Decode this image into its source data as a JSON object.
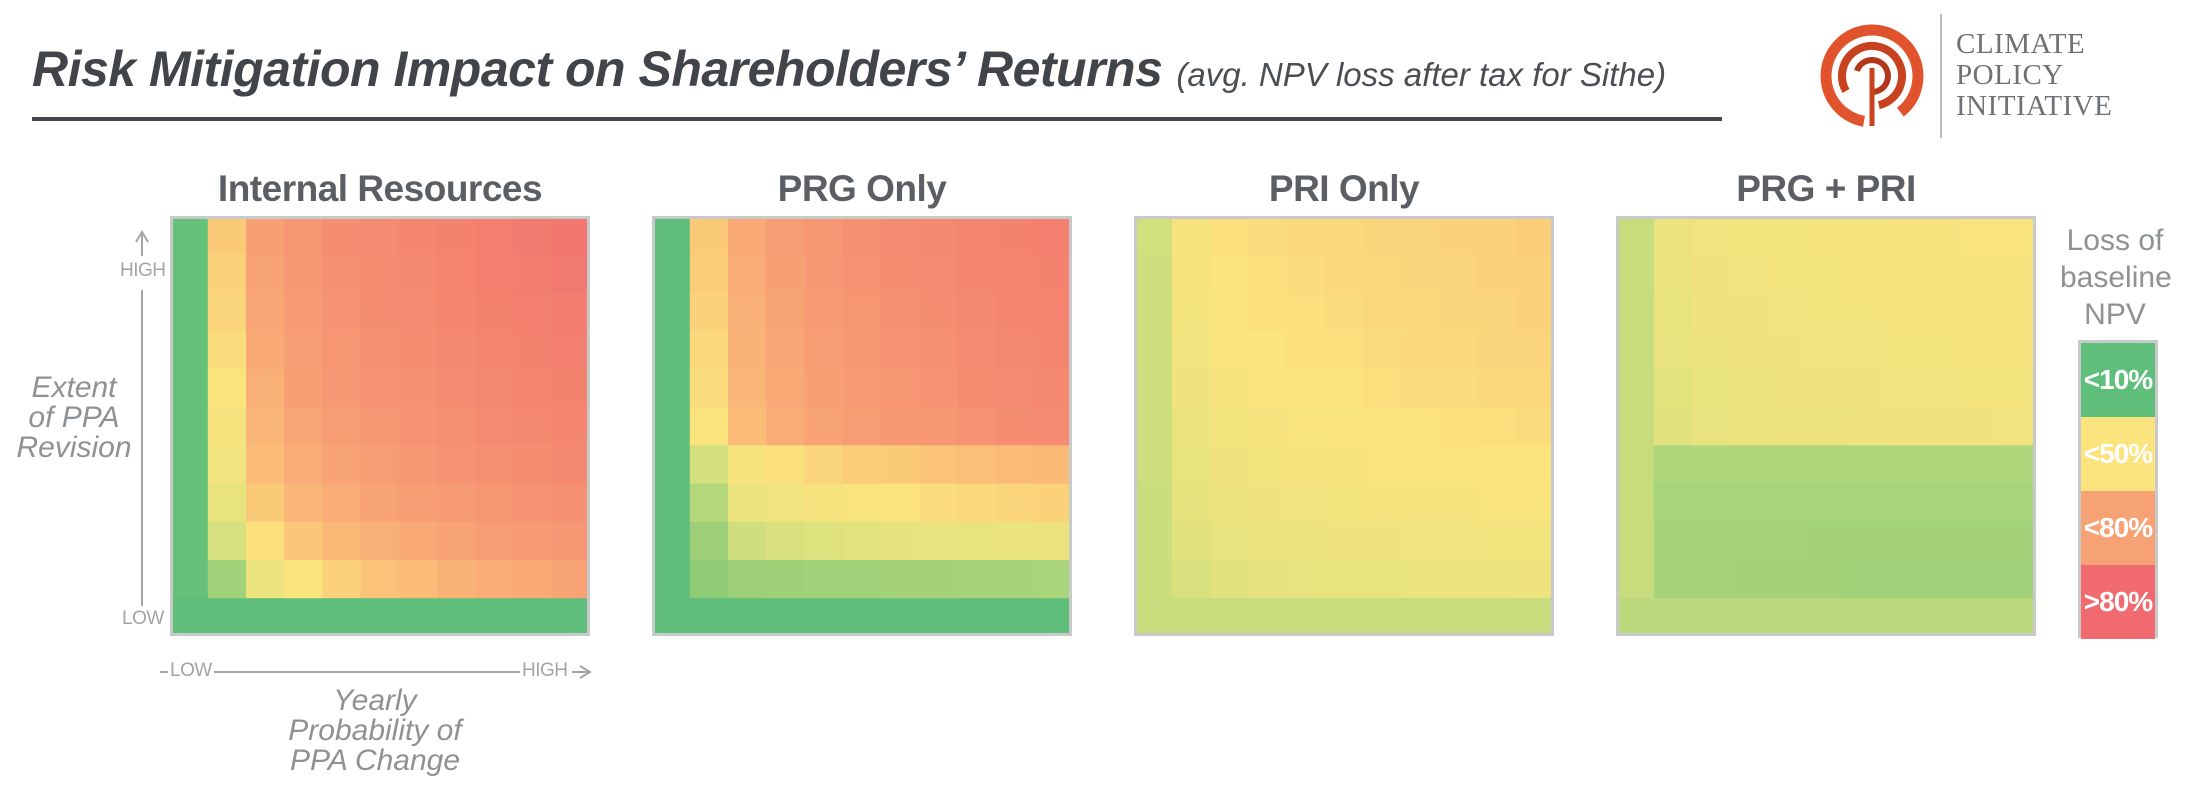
{
  "header": {
    "title": "Risk Mitigation Impact on Shareholders’ Returns",
    "subtitle": "(avg. NPV loss after tax for Sithe)"
  },
  "logo": {
    "lines": [
      "CLIMATE",
      "POLICY",
      "INITIATIVE"
    ],
    "mark_color": "#e0532c"
  },
  "axes": {
    "y_title": [
      "Extent",
      "of PPA",
      "Revision"
    ],
    "y_high": "HIGH",
    "y_low": "LOW",
    "x_title": [
      "Yearly",
      "Probability of",
      "PPA Change"
    ],
    "x_low": "LOW",
    "x_high": "HIGH"
  },
  "legend": {
    "title": [
      "Loss of",
      "baseline",
      "NPV"
    ],
    "items": [
      {
        "label": "<10%",
        "color": "#5fbe7a"
      },
      {
        "label": "<50%",
        "color": "#fbe37d"
      },
      {
        "label": "<80%",
        "color": "#f6a274"
      },
      {
        "label": ">80%",
        "color": "#f06a6f"
      }
    ]
  },
  "chart_data": {
    "type": "heatmap",
    "title": "Risk Mitigation Impact on Shareholders’ Returns",
    "xlabel": "Yearly Probability of PPA Change",
    "ylabel": "Extent of PPA Revision",
    "x_scale": "LOW to HIGH (11 steps)",
    "y_scale": "LOW to HIGH (11 steps)",
    "row_order": "high-to-low",
    "value_unit": "fraction of baseline NPV lost",
    "panels": [
      {
        "name": "Internal Resources",
        "z": [
          [
            0.02,
            0.62,
            0.75,
            0.79,
            0.82,
            0.83,
            0.85,
            0.87,
            0.89,
            0.91,
            0.93
          ],
          [
            0.02,
            0.6,
            0.74,
            0.78,
            0.81,
            0.82,
            0.84,
            0.86,
            0.88,
            0.9,
            0.92
          ],
          [
            0.02,
            0.59,
            0.73,
            0.77,
            0.8,
            0.82,
            0.83,
            0.85,
            0.87,
            0.88,
            0.9
          ],
          [
            0.02,
            0.57,
            0.72,
            0.76,
            0.79,
            0.81,
            0.82,
            0.84,
            0.85,
            0.87,
            0.89
          ],
          [
            0.02,
            0.55,
            0.7,
            0.75,
            0.78,
            0.8,
            0.81,
            0.83,
            0.84,
            0.86,
            0.87
          ],
          [
            0.02,
            0.52,
            0.68,
            0.73,
            0.76,
            0.78,
            0.8,
            0.81,
            0.83,
            0.84,
            0.85
          ],
          [
            0.02,
            0.49,
            0.66,
            0.71,
            0.74,
            0.76,
            0.78,
            0.8,
            0.81,
            0.82,
            0.84
          ],
          [
            0.02,
            0.44,
            0.62,
            0.68,
            0.71,
            0.74,
            0.76,
            0.77,
            0.79,
            0.8,
            0.81
          ],
          [
            0.02,
            0.36,
            0.56,
            0.63,
            0.67,
            0.7,
            0.72,
            0.74,
            0.76,
            0.77,
            0.78
          ],
          [
            0.02,
            0.22,
            0.46,
            0.55,
            0.6,
            0.64,
            0.66,
            0.69,
            0.71,
            0.72,
            0.74
          ],
          [
            0.0,
            0.0,
            0.0,
            0.0,
            0.0,
            0.0,
            0.0,
            0.0,
            0.0,
            0.0,
            0.0
          ]
        ]
      },
      {
        "name": "PRG Only",
        "z": [
          [
            0.0,
            0.62,
            0.72,
            0.76,
            0.79,
            0.81,
            0.83,
            0.84,
            0.86,
            0.87,
            0.88
          ],
          [
            0.0,
            0.61,
            0.71,
            0.75,
            0.78,
            0.8,
            0.82,
            0.83,
            0.85,
            0.86,
            0.87
          ],
          [
            0.0,
            0.6,
            0.7,
            0.74,
            0.77,
            0.79,
            0.81,
            0.82,
            0.84,
            0.85,
            0.86
          ],
          [
            0.0,
            0.58,
            0.69,
            0.73,
            0.76,
            0.78,
            0.8,
            0.81,
            0.83,
            0.84,
            0.85
          ],
          [
            0.0,
            0.57,
            0.68,
            0.72,
            0.75,
            0.77,
            0.79,
            0.8,
            0.82,
            0.83,
            0.84
          ],
          [
            0.0,
            0.55,
            0.66,
            0.71,
            0.74,
            0.76,
            0.78,
            0.79,
            0.8,
            0.82,
            0.83
          ],
          [
            0.0,
            0.35,
            0.52,
            0.56,
            0.59,
            0.61,
            0.62,
            0.64,
            0.65,
            0.66,
            0.67
          ],
          [
            0.0,
            0.27,
            0.45,
            0.49,
            0.52,
            0.54,
            0.55,
            0.57,
            0.58,
            0.59,
            0.6
          ],
          [
            0.0,
            0.2,
            0.33,
            0.37,
            0.39,
            0.41,
            0.42,
            0.43,
            0.44,
            0.45,
            0.46
          ],
          [
            0.0,
            0.15,
            0.2,
            0.21,
            0.22,
            0.22,
            0.23,
            0.23,
            0.24,
            0.24,
            0.25
          ],
          [
            0.0,
            0.0,
            0.0,
            0.0,
            0.0,
            0.0,
            0.0,
            0.0,
            0.0,
            0.0,
            0.0
          ]
        ]
      },
      {
        "name": "PRI Only",
        "z": [
          [
            0.34,
            0.52,
            0.56,
            0.57,
            0.58,
            0.58,
            0.59,
            0.59,
            0.6,
            0.6,
            0.61
          ],
          [
            0.33,
            0.51,
            0.55,
            0.56,
            0.57,
            0.58,
            0.58,
            0.59,
            0.59,
            0.6,
            0.6
          ],
          [
            0.33,
            0.5,
            0.54,
            0.56,
            0.56,
            0.57,
            0.58,
            0.58,
            0.59,
            0.59,
            0.6
          ],
          [
            0.33,
            0.49,
            0.53,
            0.55,
            0.56,
            0.56,
            0.57,
            0.58,
            0.58,
            0.59,
            0.59
          ],
          [
            0.32,
            0.47,
            0.52,
            0.53,
            0.55,
            0.55,
            0.56,
            0.57,
            0.57,
            0.58,
            0.58
          ],
          [
            0.32,
            0.45,
            0.5,
            0.52,
            0.53,
            0.54,
            0.55,
            0.55,
            0.56,
            0.56,
            0.57
          ],
          [
            0.32,
            0.44,
            0.48,
            0.5,
            0.51,
            0.52,
            0.53,
            0.54,
            0.54,
            0.55,
            0.55
          ],
          [
            0.31,
            0.42,
            0.46,
            0.48,
            0.49,
            0.5,
            0.51,
            0.52,
            0.52,
            0.53,
            0.53
          ],
          [
            0.31,
            0.4,
            0.43,
            0.45,
            0.46,
            0.47,
            0.48,
            0.49,
            0.49,
            0.5,
            0.5
          ],
          [
            0.31,
            0.37,
            0.4,
            0.42,
            0.43,
            0.44,
            0.44,
            0.45,
            0.46,
            0.46,
            0.47
          ],
          [
            0.3,
            0.3,
            0.3,
            0.3,
            0.3,
            0.3,
            0.3,
            0.3,
            0.3,
            0.3,
            0.3
          ]
        ]
      },
      {
        "name": "PRG + PRI",
        "z": [
          [
            0.3,
            0.46,
            0.49,
            0.5,
            0.5,
            0.51,
            0.51,
            0.52,
            0.52,
            0.53,
            0.53
          ],
          [
            0.3,
            0.45,
            0.48,
            0.49,
            0.5,
            0.5,
            0.51,
            0.51,
            0.52,
            0.52,
            0.52
          ],
          [
            0.3,
            0.44,
            0.47,
            0.48,
            0.49,
            0.5,
            0.5,
            0.51,
            0.51,
            0.51,
            0.52
          ],
          [
            0.3,
            0.43,
            0.46,
            0.47,
            0.48,
            0.49,
            0.49,
            0.5,
            0.5,
            0.51,
            0.51
          ],
          [
            0.3,
            0.41,
            0.44,
            0.46,
            0.47,
            0.48,
            0.48,
            0.49,
            0.49,
            0.5,
            0.5
          ],
          [
            0.3,
            0.4,
            0.43,
            0.45,
            0.46,
            0.46,
            0.47,
            0.48,
            0.48,
            0.48,
            0.49
          ],
          [
            0.3,
            0.26,
            0.26,
            0.26,
            0.26,
            0.26,
            0.26,
            0.26,
            0.26,
            0.26,
            0.26
          ],
          [
            0.3,
            0.25,
            0.25,
            0.25,
            0.25,
            0.25,
            0.25,
            0.25,
            0.25,
            0.25,
            0.25
          ],
          [
            0.3,
            0.24,
            0.24,
            0.24,
            0.24,
            0.23,
            0.23,
            0.23,
            0.23,
            0.23,
            0.23
          ],
          [
            0.3,
            0.24,
            0.24,
            0.23,
            0.23,
            0.23,
            0.22,
            0.22,
            0.22,
            0.22,
            0.22
          ],
          [
            0.28,
            0.28,
            0.28,
            0.28,
            0.28,
            0.28,
            0.28,
            0.28,
            0.28,
            0.28,
            0.28
          ]
        ]
      }
    ]
  }
}
